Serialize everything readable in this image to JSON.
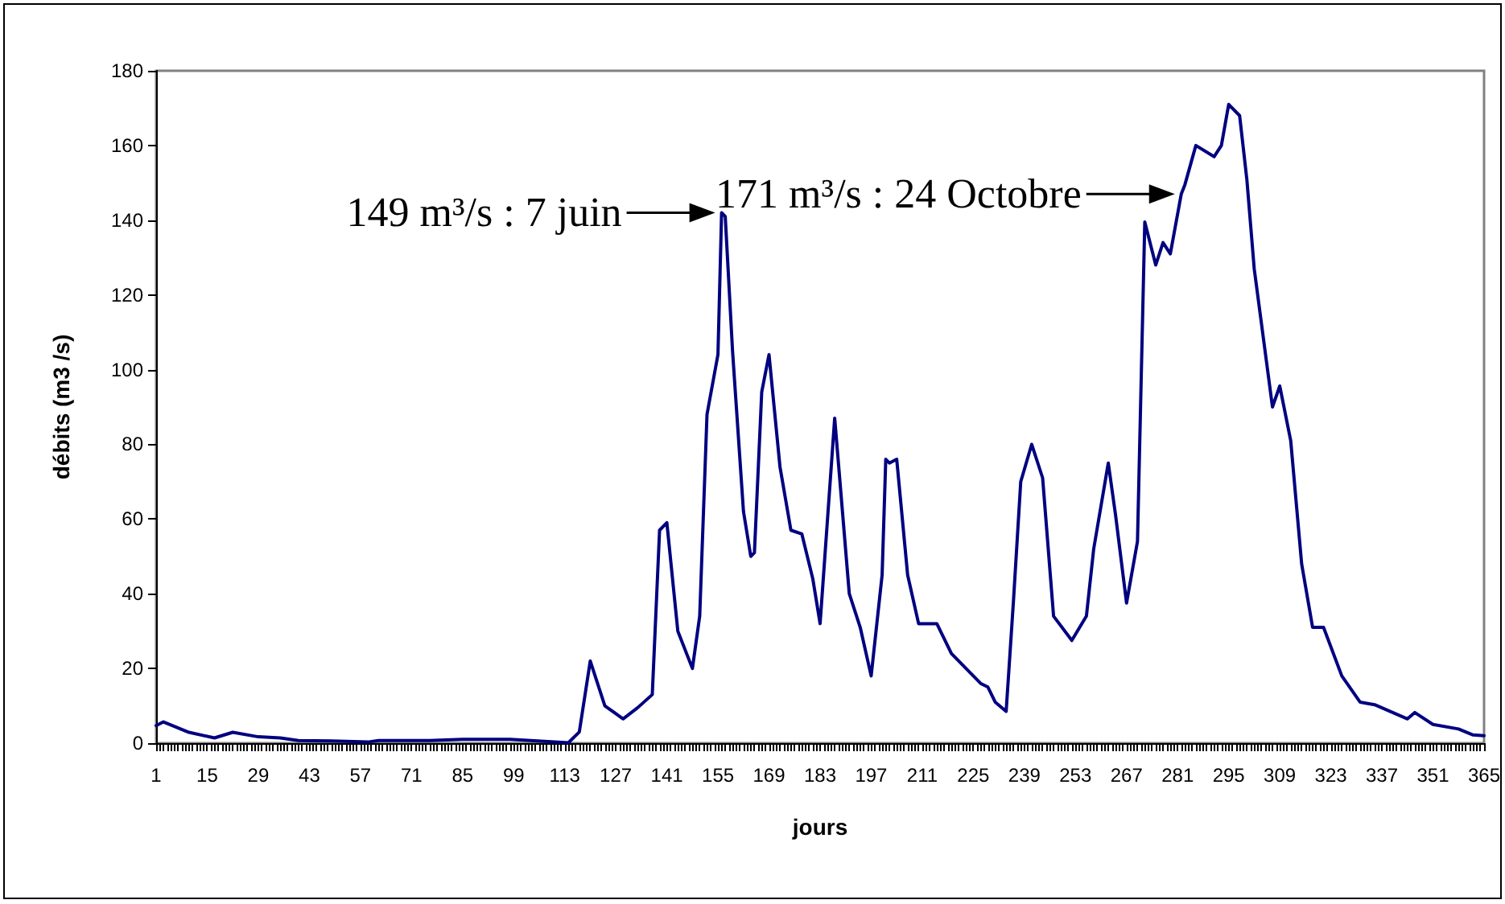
{
  "chart_data": {
    "type": "line",
    "xlabel": "jours",
    "ylabel": "débits (m3 /s)",
    "annotations": [
      {
        "text": "149 m³/s : 7 juin",
        "x": 156,
        "y": 142
      },
      {
        "text": "171 m³/s : 24 Octobre",
        "x": 282,
        "y": 147
      }
    ],
    "xlim": [
      1,
      365
    ],
    "xticks": [
      1,
      15,
      29,
      43,
      57,
      71,
      85,
      99,
      113,
      127,
      141,
      155,
      169,
      183,
      197,
      211,
      225,
      239,
      253,
      267,
      281,
      295,
      309,
      323,
      337,
      351,
      365
    ],
    "ylim": [
      0,
      180
    ],
    "yticks": [
      0,
      20,
      40,
      60,
      80,
      100,
      120,
      140,
      160,
      180
    ],
    "grid": false,
    "marker": "none",
    "line_style": "solid",
    "series": [
      {
        "color": "#000080",
        "x": [
          1,
          3,
          10,
          17,
          22,
          29,
          35,
          40,
          49,
          59,
          62,
          71,
          76,
          85,
          98,
          114,
          117,
          120,
          124,
          129,
          133,
          137,
          139,
          141,
          144,
          148,
          150,
          152,
          155,
          156,
          157,
          159,
          162,
          164,
          165,
          167,
          169,
          172,
          175,
          178,
          181,
          183,
          187,
          191,
          194,
          197,
          200,
          201,
          202,
          204,
          207,
          210,
          215,
          219,
          223,
          227,
          229,
          231,
          234,
          236,
          238,
          241,
          244,
          247,
          252,
          256,
          258,
          262,
          264,
          267,
          270,
          272,
          275,
          277,
          279,
          282,
          283,
          286,
          291,
          293,
          295,
          298,
          300,
          302,
          307,
          309,
          312,
          315,
          318,
          321,
          326,
          331,
          335,
          344,
          346,
          351,
          358,
          362,
          365
        ],
        "values": [
          4.7,
          5.7,
          2.9,
          1.4,
          2.9,
          1.7,
          1.4,
          0.7,
          0.6,
          0.3,
          0.7,
          0.7,
          0.7,
          1,
          1,
          0.1,
          3,
          22,
          10,
          6.5,
          9.5,
          13,
          57,
          59,
          30,
          20,
          34,
          88,
          104,
          142,
          141,
          105,
          62,
          50,
          51,
          94,
          104,
          74,
          57,
          56,
          44,
          32,
          87,
          40,
          31,
          18,
          45,
          76,
          75,
          76,
          45,
          32,
          32,
          24,
          20,
          16,
          15,
          11,
          8.5,
          38,
          70,
          80,
          71,
          34,
          27.5,
          34,
          52,
          75,
          61,
          37.5,
          54,
          139.5,
          128,
          134,
          131,
          147,
          149.5,
          160,
          157,
          160,
          171,
          168,
          150.7,
          127,
          90,
          95.6,
          81,
          48,
          31,
          31,
          18,
          11,
          10.3,
          6.5,
          8.2,
          5,
          3.8,
          2.2,
          2
        ]
      }
    ]
  }
}
